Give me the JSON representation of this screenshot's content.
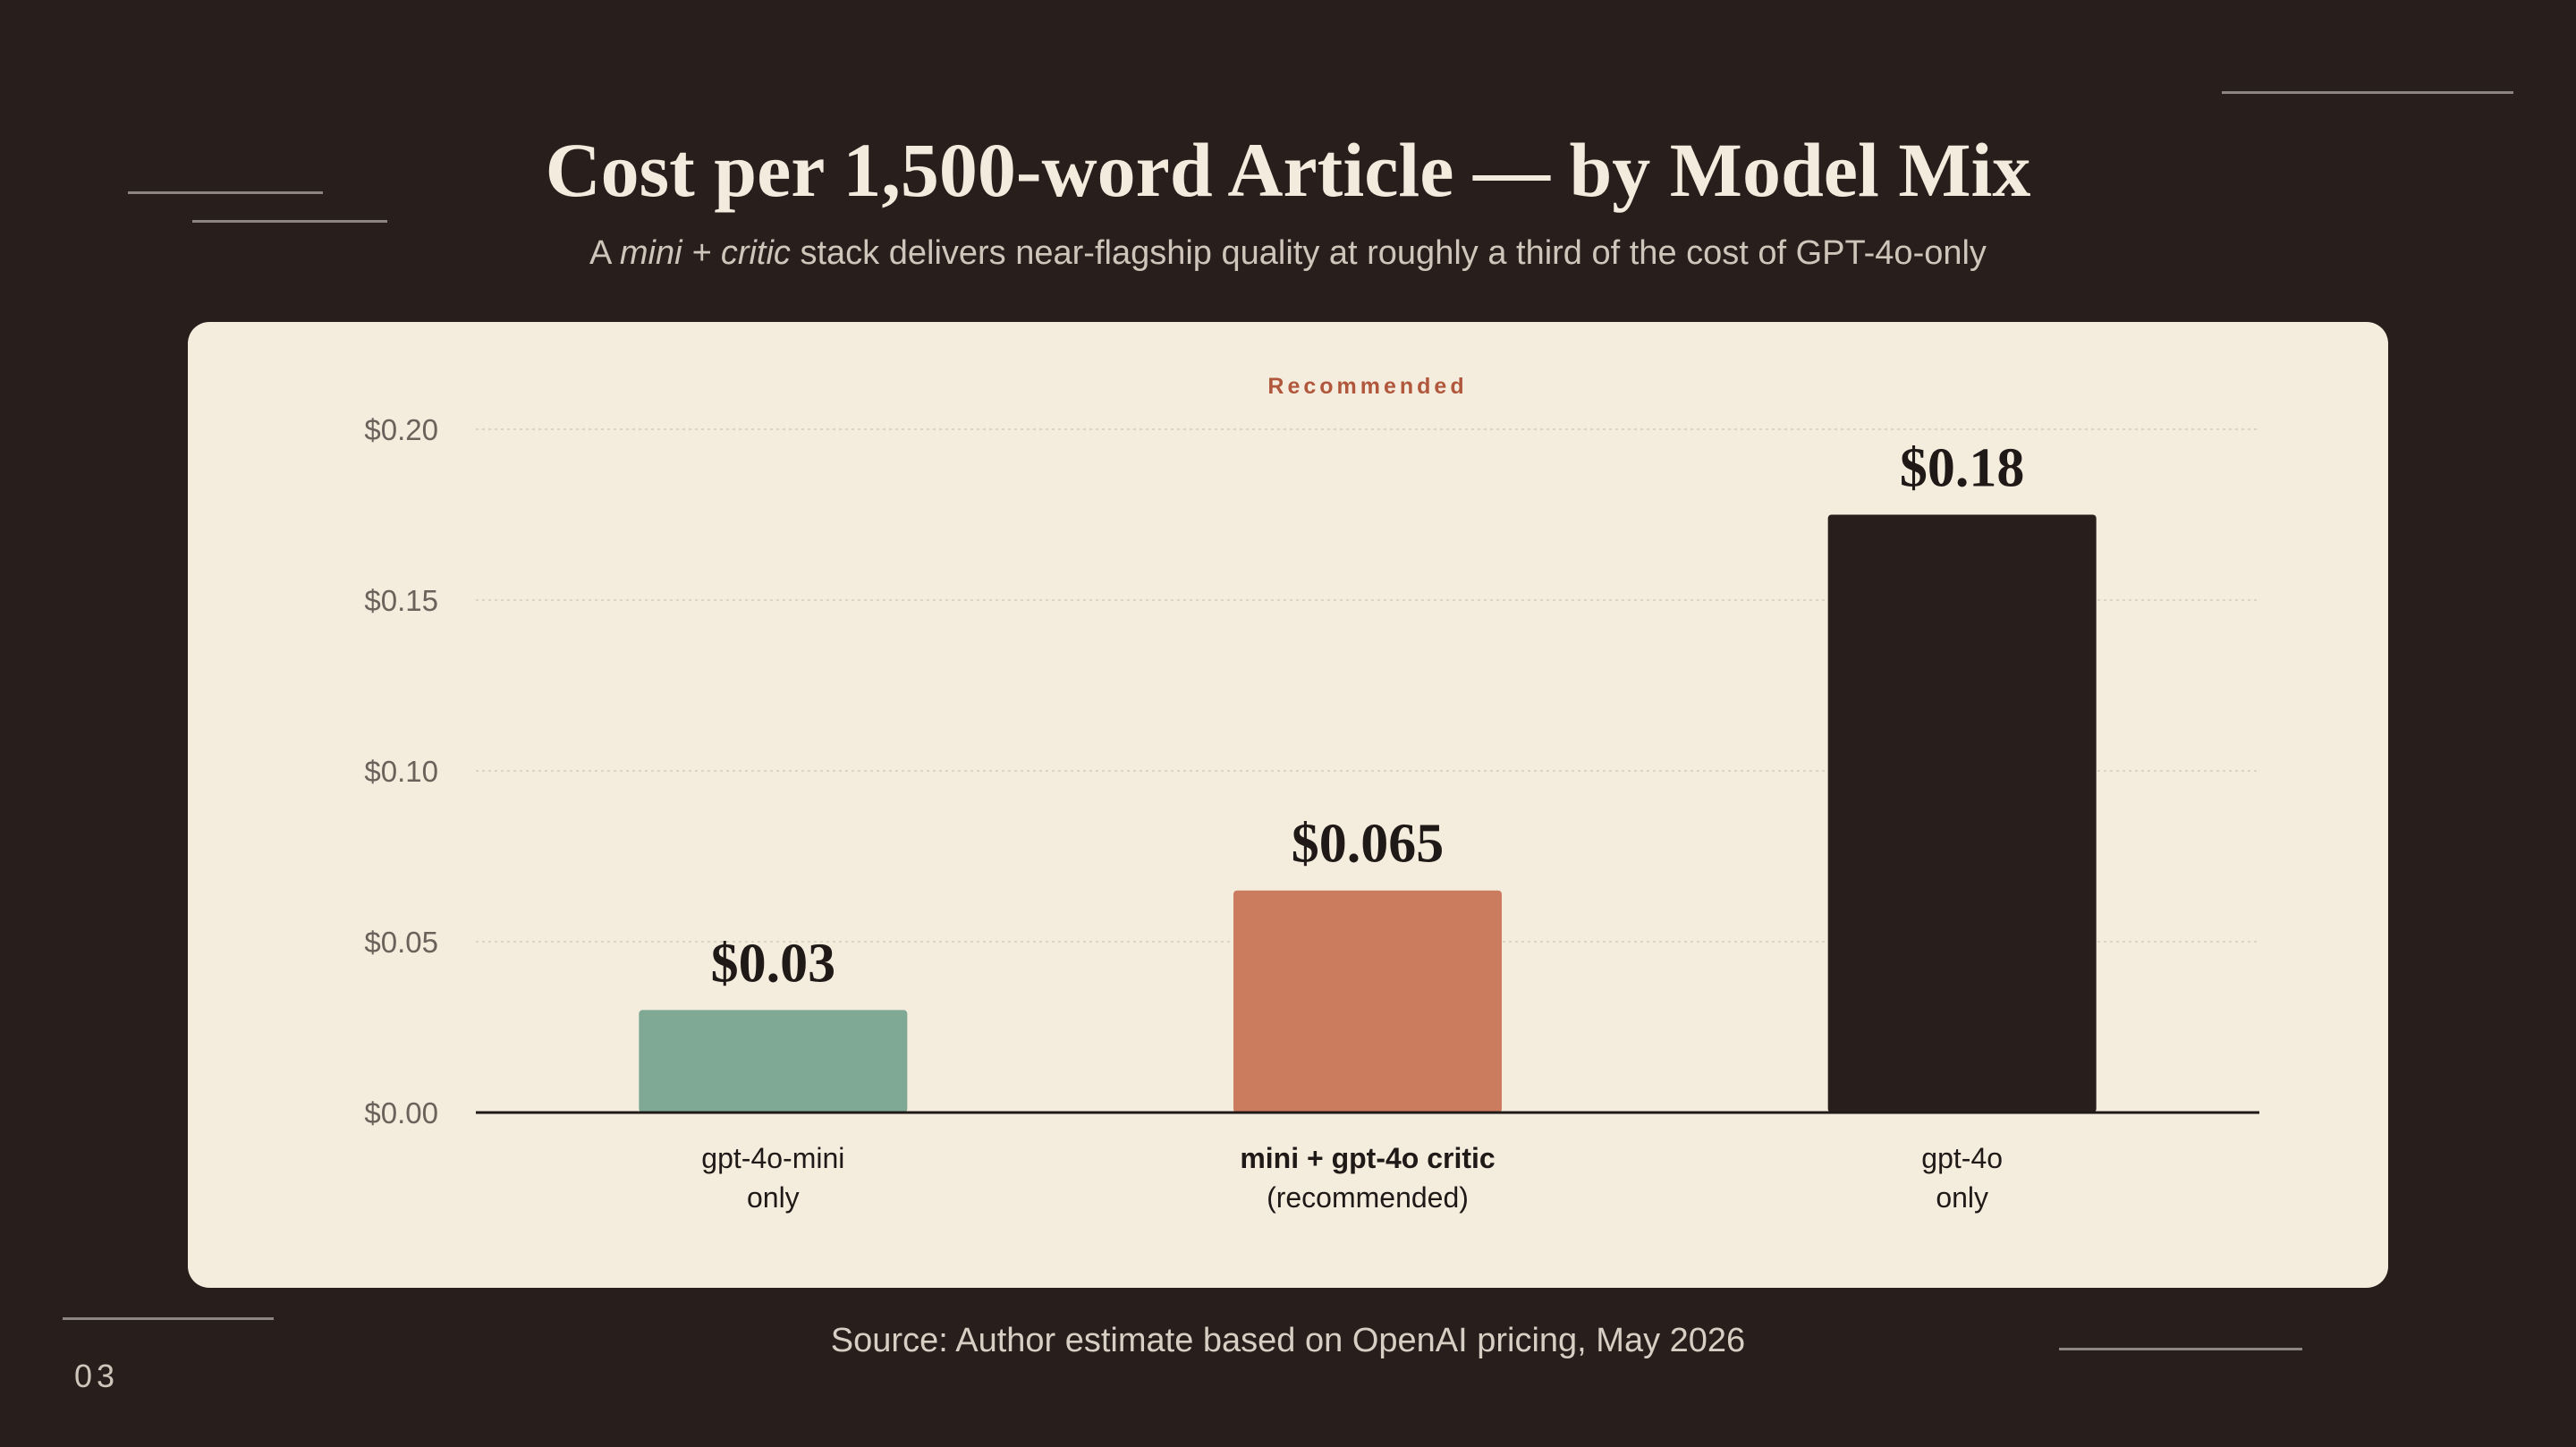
{
  "slide": {
    "title": "Cost per 1,500-word Article — by Model Mix",
    "subtitle_prefix": "A ",
    "subtitle_emphasis": "mini + critic",
    "subtitle_suffix": " stack delivers near-flagship quality at roughly a third of the cost of GPT-4o-only",
    "source": "Source: Author estimate based on OpenAI pricing, May 2026",
    "page_number": "03"
  },
  "chart_data": {
    "type": "bar",
    "annotation": "Recommended",
    "categories": [
      [
        "gpt-4o-mini",
        "only"
      ],
      [
        "mini + gpt-4o critic",
        "(recommended)"
      ],
      [
        "gpt-4o",
        "only"
      ]
    ],
    "values": [
      0.03,
      0.065,
      0.175
    ],
    "value_labels": [
      "$0.03",
      "$0.065",
      "$0.18"
    ],
    "highlight_index": 1,
    "bar_colors": [
      "#7fa895",
      "#cb7b5e",
      "#281f1d"
    ],
    "yticks": [
      0,
      0.05,
      0.1,
      0.15,
      0.2
    ],
    "ytick_labels": [
      "$0.00",
      "$0.05",
      "$0.10",
      "$0.15",
      "$0.20"
    ],
    "ylim": [
      0,
      0.2
    ],
    "grid": true,
    "colors": {
      "annotation": "#b0573c",
      "grid": "#d3cbbe",
      "axis": "#1f1917",
      "tick_text": "#6c625b",
      "category_text": "#1f1917",
      "value_text": "#1f1917"
    }
  }
}
